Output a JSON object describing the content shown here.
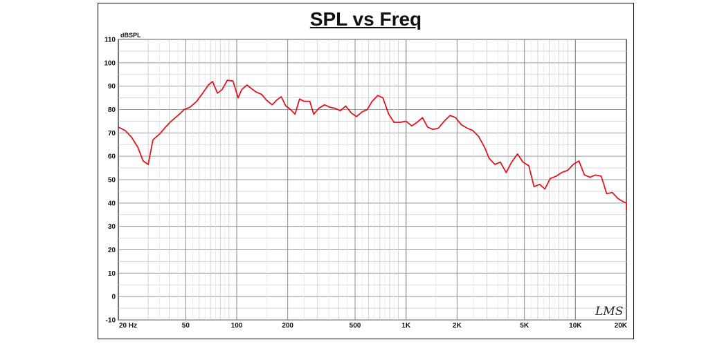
{
  "chart_data": {
    "type": "line",
    "title": "SPL vs Freq",
    "ylabel": "dBSPL",
    "xlabel": "",
    "x_scale": "log",
    "xlim": [
      20,
      20000
    ],
    "ylim": [
      -10,
      110
    ],
    "grid": true,
    "x_ticks": [
      {
        "value": 20,
        "label": "20  Hz"
      },
      {
        "value": 50,
        "label": "50"
      },
      {
        "value": 100,
        "label": "100"
      },
      {
        "value": 200,
        "label": "200"
      },
      {
        "value": 500,
        "label": "500"
      },
      {
        "value": 1000,
        "label": "1K"
      },
      {
        "value": 2000,
        "label": "2K"
      },
      {
        "value": 5000,
        "label": "5K"
      },
      {
        "value": 10000,
        "label": "10K"
      },
      {
        "value": 20000,
        "label": "20K"
      }
    ],
    "y_ticks": [
      -10,
      0,
      10,
      20,
      30,
      40,
      50,
      60,
      70,
      80,
      90,
      100,
      110
    ],
    "series": [
      {
        "color": "#e0141e",
        "points": [
          [
            20,
            72.5
          ],
          [
            22,
            71
          ],
          [
            24,
            68
          ],
          [
            26,
            64
          ],
          [
            28,
            58
          ],
          [
            30,
            56.5
          ],
          [
            32,
            67
          ],
          [
            35,
            69.5
          ],
          [
            38,
            72.5
          ],
          [
            41,
            75
          ],
          [
            45,
            77.5
          ],
          [
            49,
            80
          ],
          [
            53,
            81
          ],
          [
            58,
            83.5
          ],
          [
            63,
            87
          ],
          [
            68,
            90.5
          ],
          [
            72,
            92
          ],
          [
            77,
            87
          ],
          [
            82,
            88.5
          ],
          [
            88,
            92.5
          ],
          [
            95,
            92.2
          ],
          [
            102,
            85
          ],
          [
            107,
            88.5
          ],
          [
            115,
            90.5
          ],
          [
            122,
            89
          ],
          [
            130,
            87.5
          ],
          [
            140,
            86.5
          ],
          [
            150,
            84
          ],
          [
            162,
            82
          ],
          [
            172,
            84
          ],
          [
            183,
            85.5
          ],
          [
            195,
            81.5
          ],
          [
            208,
            80
          ],
          [
            221,
            78
          ],
          [
            235,
            84.5
          ],
          [
            250,
            83.5
          ],
          [
            270,
            83.5
          ],
          [
            285,
            78
          ],
          [
            305,
            80.5
          ],
          [
            330,
            82
          ],
          [
            355,
            81
          ],
          [
            380,
            80.5
          ],
          [
            410,
            79.5
          ],
          [
            440,
            81.5
          ],
          [
            475,
            78.5
          ],
          [
            510,
            77
          ],
          [
            550,
            79
          ],
          [
            590,
            80
          ],
          [
            630,
            83.5
          ],
          [
            680,
            86
          ],
          [
            730,
            85
          ],
          [
            790,
            78
          ],
          [
            850,
            74.5
          ],
          [
            920,
            74.5
          ],
          [
            1000,
            75
          ],
          [
            1080,
            73
          ],
          [
            1160,
            74.5
          ],
          [
            1250,
            76.5
          ],
          [
            1340,
            72.5
          ],
          [
            1440,
            71.5
          ],
          [
            1550,
            72
          ],
          [
            1680,
            75
          ],
          [
            1820,
            77.5
          ],
          [
            1960,
            76.5
          ],
          [
            2120,
            73.5
          ],
          [
            2300,
            72
          ],
          [
            2480,
            71
          ],
          [
            2680,
            68.5
          ],
          [
            2900,
            64
          ],
          [
            3100,
            59
          ],
          [
            3350,
            56.5
          ],
          [
            3600,
            57.5
          ],
          [
            3900,
            53
          ],
          [
            4200,
            57.5
          ],
          [
            4550,
            61
          ],
          [
            4900,
            57.5
          ],
          [
            5300,
            56
          ],
          [
            5700,
            47
          ],
          [
            6150,
            48
          ],
          [
            6600,
            46
          ],
          [
            7100,
            50.5
          ],
          [
            7700,
            51.5
          ],
          [
            8300,
            53
          ],
          [
            9000,
            54
          ],
          [
            9700,
            56.5
          ],
          [
            10500,
            58
          ],
          [
            11300,
            52
          ],
          [
            12200,
            51
          ],
          [
            13100,
            52
          ],
          [
            14200,
            51.5
          ],
          [
            15300,
            44
          ],
          [
            16500,
            44.5
          ],
          [
            17800,
            42
          ],
          [
            19200,
            40.5
          ],
          [
            20700,
            40
          ],
          [
            22300,
            40
          ],
          [
            24000,
            38
          ],
          [
            25500,
            37
          ]
        ]
      }
    ]
  },
  "logo": {
    "text": "LMS"
  }
}
